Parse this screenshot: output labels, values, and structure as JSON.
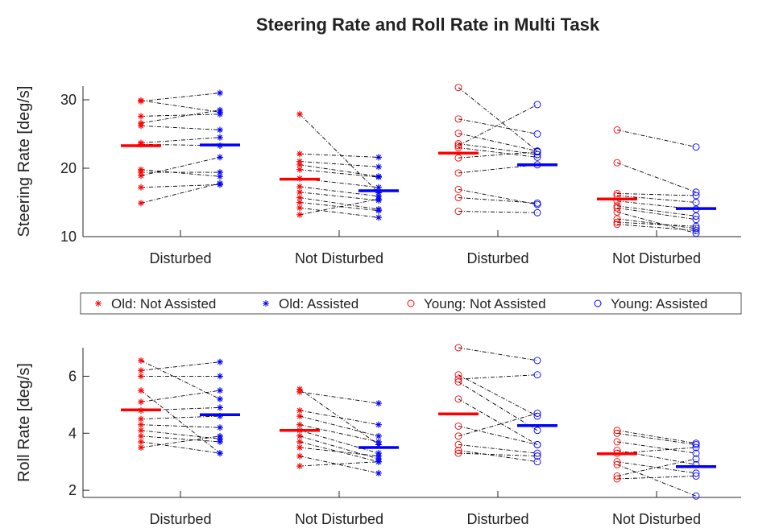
{
  "chart_data": [
    {
      "type": "paired",
      "title": "Steering Rate and Roll Rate in Multi Task",
      "ylabel": "Steering Rate [deg/s]",
      "categories": [
        "Disturbed",
        "Not Disturbed",
        "Disturbed",
        "Not Disturbed"
      ],
      "ylim": [
        10,
        32
      ],
      "yticks": [
        10,
        20,
        30
      ],
      "legend": "south",
      "series": [
        {
          "name": "Old: Not Assisted",
          "color": "#ff0000",
          "marker": "*",
          "values": [
            [
              29.9,
              29.8,
              27.6,
              26.6,
              26.2,
              23.7,
              23.5,
              19.8,
              19.4,
              18.9,
              17.2,
              14.9
            ],
            [
              27.9,
              22.1,
              21.0,
              20.5,
              19.8,
              18.5,
              17.3,
              16.5,
              15.7,
              15.0,
              14.2,
              13.2
            ],
            null,
            null
          ],
          "means": [
            23.3,
            18.4,
            null,
            null
          ]
        },
        {
          "name": "Old: Assisted",
          "color": "#0000ff",
          "marker": "*",
          "values": [
            [
              28.2,
              31.0,
              27.9,
              28.5,
              25.6,
              24.5,
              23.3,
              18.8,
              19.4,
              21.6,
              17.6,
              17.8
            ],
            [
              16.4,
              21.6,
              20.2,
              18.8,
              18.7,
              17.2,
              15.9,
              15.3,
              14.0,
              13.8,
              12.8,
              15.5
            ],
            null,
            null
          ],
          "means": [
            23.4,
            16.7,
            null,
            null
          ]
        },
        {
          "name": "Young: Not Assisted",
          "color": "#ff0000",
          "marker": "o",
          "values": [
            null,
            null,
            [
              31.8,
              27.2,
              25.1,
              23.6,
              23.3,
              23.0,
              21.5,
              19.3,
              16.9,
              15.7,
              13.7
            ],
            [
              25.6,
              20.8,
              16.3,
              16.0,
              15.2,
              14.5,
              14.2,
              13.6,
              12.6,
              12.1,
              11.8
            ]
          ],
          "means": [
            null,
            null,
            22.2,
            15.5
          ]
        },
        {
          "name": "Young: Assisted",
          "color": "#0000ff",
          "marker": "o",
          "values": [
            null,
            null,
            [
              22.5,
              25.0,
              22.5,
              22.0,
              29.3,
              21.6,
              22.4,
              20.5,
              14.7,
              14.9,
              13.5
            ],
            [
              23.1,
              16.5,
              16.0,
              15.0,
              14.0,
              13.0,
              12.5,
              10.5,
              11.2,
              11.5,
              10.9
            ]
          ],
          "means": [
            null,
            null,
            20.5,
            14.1
          ]
        }
      ]
    },
    {
      "type": "paired",
      "ylabel": "Roll Rate [deg/s]",
      "categories": [
        "Disturbed",
        "Not Disturbed",
        "Disturbed",
        "Not Disturbed"
      ],
      "ylim": [
        1.75,
        7
      ],
      "yticks": [
        2,
        4,
        6
      ],
      "series": [
        {
          "name": "Old: Not Assisted",
          "color": "#ff0000",
          "marker": "*",
          "values": [
            [
              6.55,
              6.2,
              6.0,
              5.5,
              5.1,
              4.8,
              4.5,
              4.3,
              4.1,
              3.9,
              3.7,
              3.5
            ],
            [
              5.55,
              5.45,
              4.8,
              4.6,
              4.3,
              4.1,
              3.9,
              3.7,
              3.5,
              3.2,
              2.85
            ],
            null,
            null
          ],
          "means": [
            4.82,
            4.1,
            null,
            null
          ]
        },
        {
          "name": "Old: Assisted",
          "color": "#0000ff",
          "marker": "*",
          "values": [
            [
              5.2,
              6.5,
              6.0,
              3.3,
              5.5,
              4.9,
              4.6,
              4.2,
              3.8,
              3.7,
              3.3,
              3.9
            ],
            [
              3.6,
              5.05,
              4.3,
              3.9,
              3.7,
              3.3,
              3.1,
              3.0,
              3.2,
              2.6,
              3.0
            ],
            null,
            null
          ],
          "means": [
            4.65,
            3.5,
            null,
            null
          ]
        },
        {
          "name": "Young: Not Assisted",
          "color": "#ff0000",
          "marker": "o",
          "values": [
            null,
            null,
            [
              7.0,
              6.05,
              5.9,
              5.8,
              5.2,
              4.25,
              3.9,
              3.6,
              3.4,
              3.3
            ],
            [
              4.1,
              4.0,
              3.7,
              3.4,
              3.3,
              3.0,
              2.9,
              2.5,
              2.4
            ]
          ],
          "means": [
            null,
            null,
            4.68,
            3.28
          ]
        },
        {
          "name": "Young: Assisted",
          "color": "#0000ff",
          "marker": "o",
          "values": [
            null,
            null,
            [
              6.55,
              4.6,
              6.05,
              4.1,
              3.6,
              3.6,
              4.7,
              3.3,
              3.0,
              3.2
            ],
            [
              3.65,
              3.6,
              3.3,
              2.9,
              3.5,
              2.6,
              1.8,
              3.1,
              2.5
            ]
          ],
          "means": [
            null,
            null,
            4.27,
            2.83
          ]
        }
      ]
    }
  ]
}
